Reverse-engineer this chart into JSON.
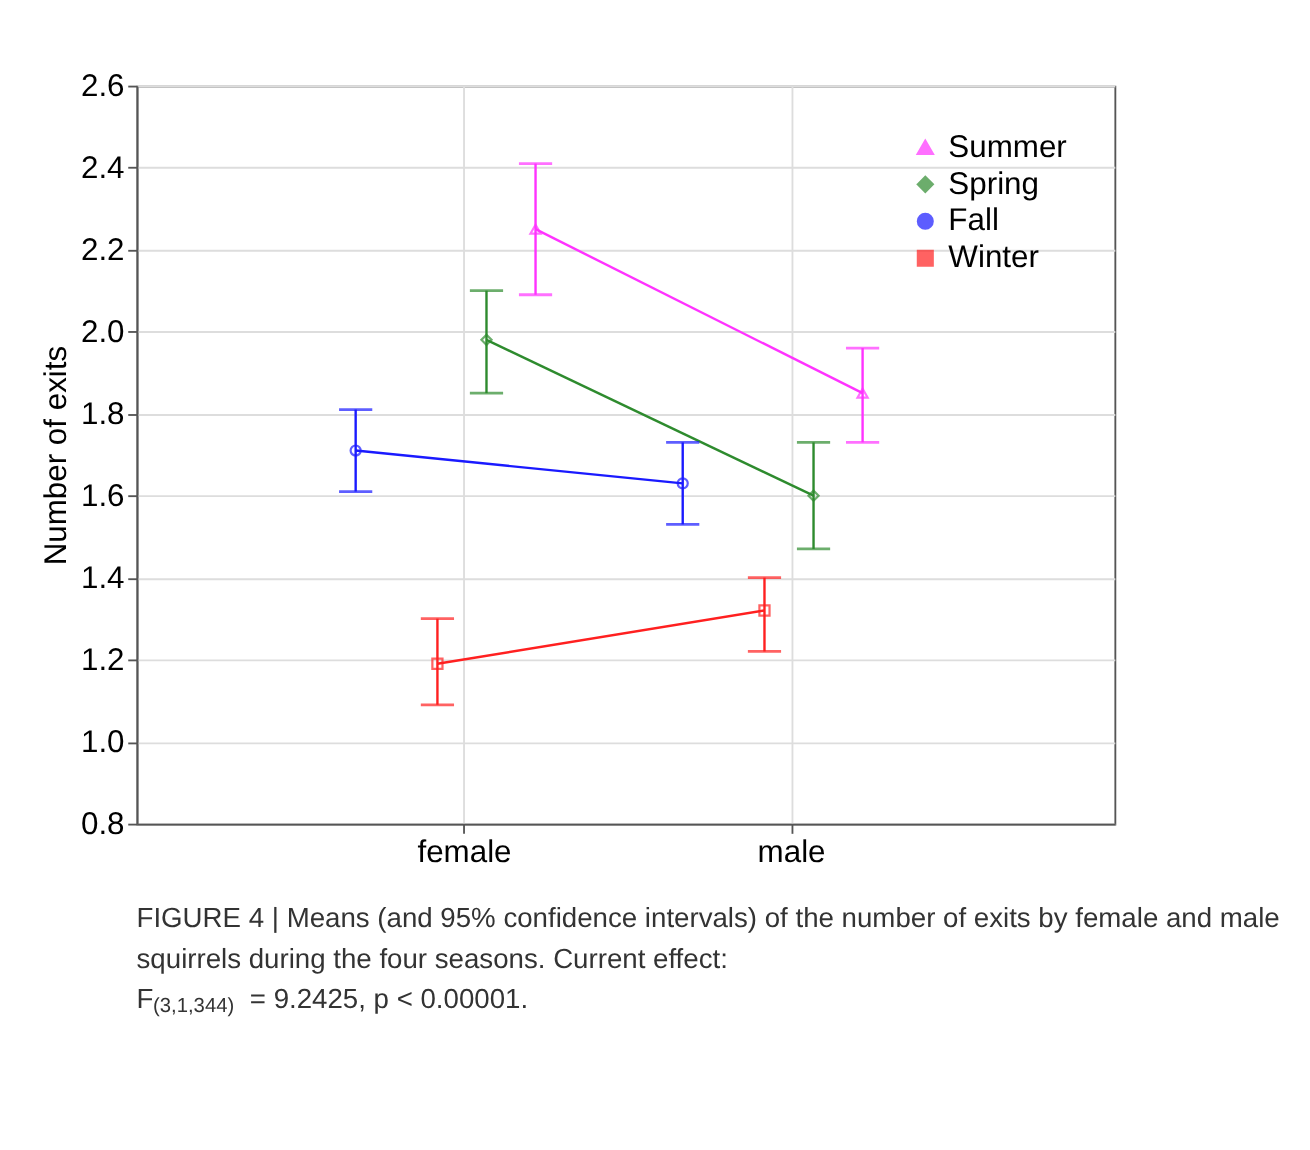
{
  "chart_data": {
    "type": "line",
    "categories": [
      "female",
      "male"
    ],
    "ylabel": "Number of exits",
    "ylim": [
      0.8,
      2.6
    ],
    "yticks": [
      0.8,
      {
        "value": 1.0,
        "label": "1.0"
      },
      1.2,
      1.4,
      1.6,
      1.8,
      {
        "value": 2.0,
        "label": "2.0"
      },
      2.2,
      2.4,
      2.6
    ],
    "grid": true,
    "legend": "top right",
    "series": [
      {
        "name": "Summer",
        "color": "#ff33ff",
        "marker": "triangle",
        "values": [
          2.25,
          1.85
        ],
        "errors": [
          [
            2.09,
            2.41
          ],
          [
            1.73,
            1.96
          ]
        ]
      },
      {
        "name": "Spring",
        "color": "#2e8b2e",
        "marker": "diamond",
        "values": [
          1.98,
          1.6
        ],
        "errors": [
          [
            1.85,
            2.1
          ],
          [
            1.47,
            1.73
          ]
        ]
      },
      {
        "name": "Fall",
        "color": "#1a1aff",
        "marker": "circle",
        "values": [
          1.71,
          1.63
        ],
        "errors": [
          [
            1.61,
            1.81
          ],
          [
            1.53,
            1.73
          ]
        ]
      },
      {
        "name": "Winter",
        "color": "#ff2020",
        "marker": "square",
        "values": [
          1.19,
          1.32
        ],
        "errors": [
          [
            1.09,
            1.3
          ],
          [
            1.22,
            1.4
          ]
        ]
      }
    ],
    "annotations": [
      "FIGURE 4 | Means (and 95% confidence intervals) of the number of exits by female and male squirrels during the four seasons. Current effect: F$_{(3,1,344)}$ = 9.2425, p < 0.00001."
    ]
  }
}
